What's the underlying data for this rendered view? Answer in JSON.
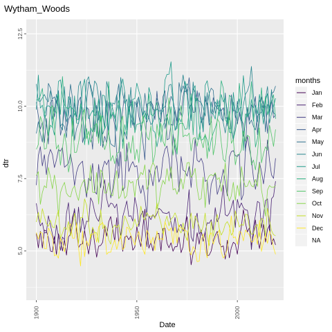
{
  "chart_data": {
    "type": "line",
    "title": "Wytham_Woods",
    "xlabel": "Date",
    "ylabel": "dtr",
    "xlim": [
      1895,
      2023
    ],
    "ylim": [
      3.3,
      13.0
    ],
    "x_ticks": [
      1900,
      1950,
      2000
    ],
    "x_tick_labels": [
      "1900",
      "1950",
      "2000"
    ],
    "y_ticks": [
      5.0,
      7.5,
      10.0,
      12.5
    ],
    "y_tick_labels": [
      "5.0",
      "7.5",
      "10.0",
      "12.5"
    ],
    "x_tick_rotation": -90,
    "y_tick_rotation": -90,
    "grid": true,
    "panel_background": "#ebebeb",
    "grid_color": "#ffffff",
    "x_start": 1900,
    "x_end": 2019,
    "legend": {
      "title": "months",
      "position": "right",
      "entries": [
        "Jan",
        "Feb",
        "Mar",
        "Apr",
        "May",
        "Jun",
        "Jul",
        "Aug",
        "Sep",
        "Oct",
        "Nov",
        "Dec",
        "NA"
      ],
      "colors": [
        "#440154",
        "#482173",
        "#433e85",
        "#38598c",
        "#2d708e",
        "#25858e",
        "#1e9b8a",
        "#2ab07f",
        "#51c56a",
        "#86d549",
        "#c2df23",
        "#fde725",
        "#7f7f7f"
      ]
    },
    "series": [
      {
        "name": "Jan",
        "color": "#440154",
        "mean": 5.4,
        "amplitude": 0.55
      },
      {
        "name": "Feb",
        "color": "#482173",
        "mean": 6.2,
        "amplitude": 0.7
      },
      {
        "name": "Mar",
        "color": "#433e85",
        "mean": 7.8,
        "amplitude": 0.8
      },
      {
        "name": "Apr",
        "color": "#38598c",
        "mean": 9.6,
        "amplitude": 0.8
      },
      {
        "name": "May",
        "color": "#2d708e",
        "mean": 9.9,
        "amplitude": 0.8
      },
      {
        "name": "Jun",
        "color": "#25858e",
        "mean": 10.1,
        "amplitude": 0.8
      },
      {
        "name": "Jul",
        "color": "#1e9b8a",
        "mean": 9.9,
        "amplitude": 0.85
      },
      {
        "name": "Aug",
        "color": "#2ab07f",
        "mean": 9.7,
        "amplitude": 0.8
      },
      {
        "name": "Sep",
        "color": "#51c56a",
        "mean": 8.9,
        "amplitude": 0.75
      },
      {
        "name": "Oct",
        "color": "#86d549",
        "mean": 7.3,
        "amplitude": 0.65
      },
      {
        "name": "Nov",
        "color": "#c2df23",
        "mean": 5.9,
        "amplitude": 0.5
      },
      {
        "name": "Dec",
        "color": "#fde725",
        "mean": 5.4,
        "amplitude": 0.5
      }
    ]
  }
}
